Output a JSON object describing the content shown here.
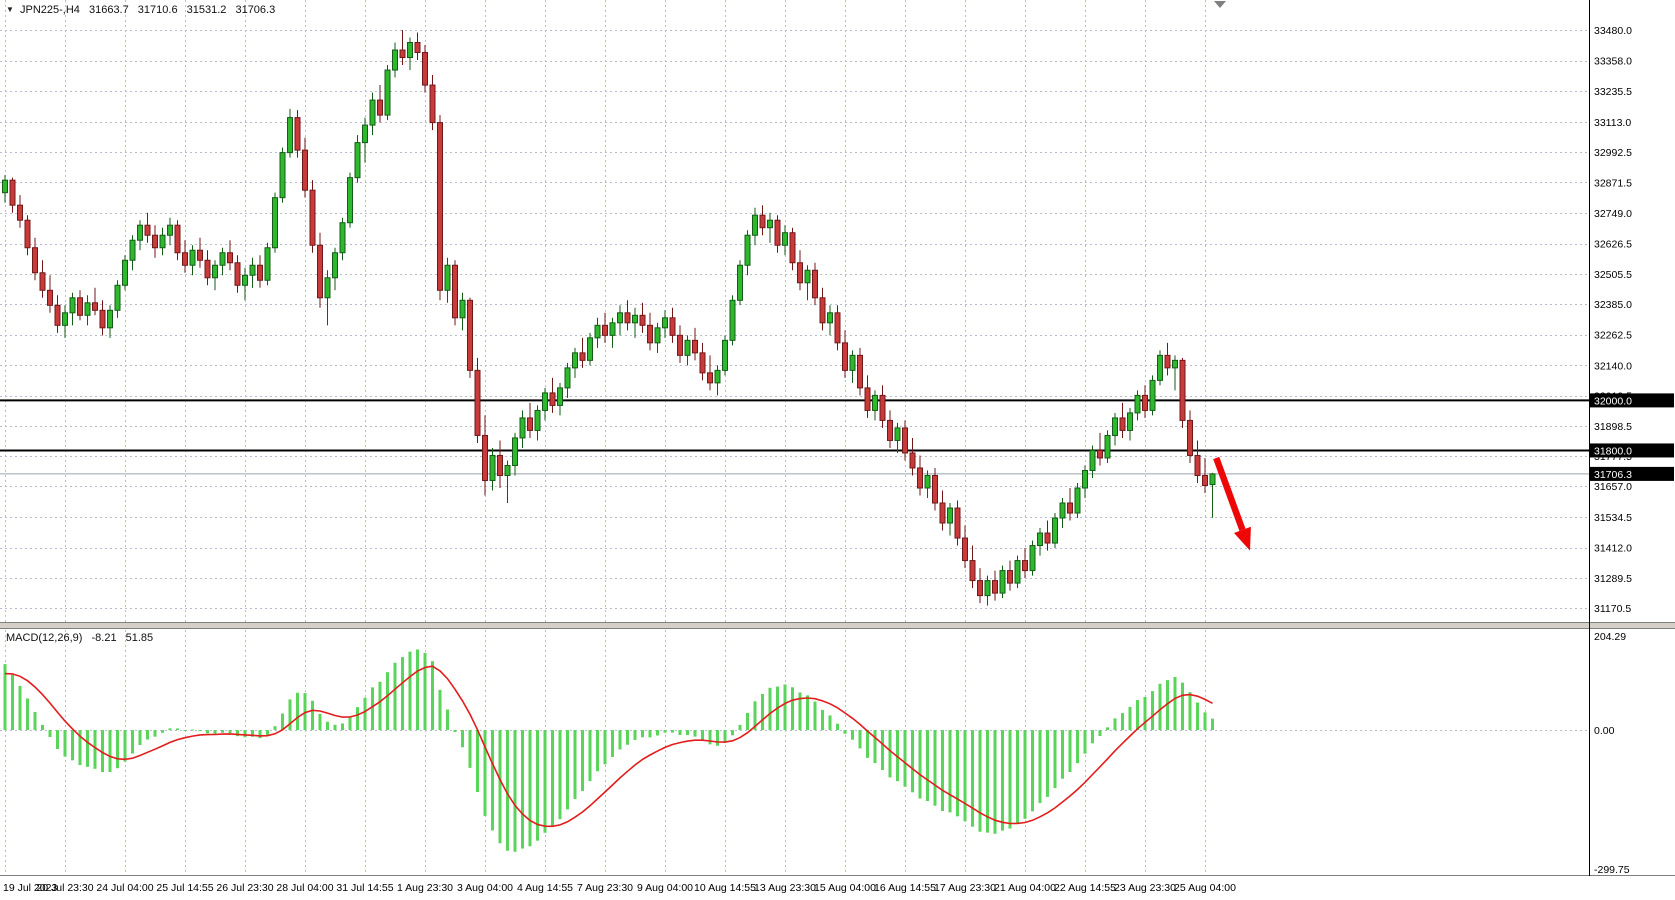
{
  "header": {
    "dropdown_icon": "▼",
    "symbol_period": "JPN225-,H4",
    "open": "31663.7",
    "high": "31710.6",
    "low": "31531.2",
    "close": "31706.3"
  },
  "indicator": {
    "label": "MACD(12,26,9)",
    "main_value": "-8.21",
    "signal_value": "51.85"
  },
  "colors": {
    "background": "#ffffff",
    "grid": "#b8bcd2",
    "bull_fill": "#2eb82e",
    "bull_stroke": "#145c17",
    "bear_fill": "#c93b3b",
    "bear_stroke": "#701818",
    "macd_hist": "#5ad45a",
    "macd_signal": "#e31c1c",
    "level_line": "#000000",
    "badge_bg": "#000000",
    "badge_text": "#ffffff",
    "axis_text": "#000000",
    "current_price_line": "#9aa2ae",
    "panel_splitter": "#d4d0c8",
    "splitter_border": "#808080"
  },
  "annotations": {
    "arrow": {
      "color": "#ee0707",
      "from_bar": 161.5,
      "from_price": 31770,
      "to_bar": 166,
      "to_price": 31400
    }
  },
  "chart_data": {
    "type": "candlestick",
    "symbol_period": "JPN225-,H4",
    "label_every_n_bars": 8,
    "time_labels": [
      "19 Jul 2023",
      "20 Jul 23:30",
      "24 Jul 04:00",
      "25 Jul 14:55",
      "26 Jul 23:30",
      "28 Jul 04:00",
      "31 Jul 14:55",
      "1 Aug 23:30",
      "3 Aug 04:00",
      "4 Aug 14:55",
      "7 Aug 23:30",
      "9 Aug 04:00",
      "10 Aug 14:55",
      "13 Aug 23:30",
      "15 Aug 04:00",
      "16 Aug 14:55",
      "17 Aug 23:30",
      "21 Aug 04:00",
      "22 Aug 14:55",
      "23 Aug 23:30",
      "25 Aug 04:00"
    ],
    "y_ticks": [
      33480.0,
      33358.0,
      33235.5,
      33113.0,
      32992.5,
      32871.5,
      32749.0,
      32626.5,
      32505.5,
      32385.0,
      32262.5,
      32140.0,
      32019.5,
      31898.5,
      31777.5,
      31657.0,
      31534.5,
      31412.0,
      31289.5,
      31170.5
    ],
    "levels": [
      32000.0,
      31800.0
    ],
    "current_price": 31706.3,
    "macd": {
      "params": "12,26,9",
      "range": [
        204.29,
        -299.75
      ],
      "ticks": [
        "204.29",
        "0.00",
        "-299.75"
      ]
    },
    "candles": [
      [
        32830,
        32900,
        32790,
        32880
      ],
      [
        32880,
        32890,
        32750,
        32780
      ],
      [
        32780,
        32820,
        32690,
        32720
      ],
      [
        32720,
        32740,
        32580,
        32610
      ],
      [
        32610,
        32650,
        32480,
        32510
      ],
      [
        32510,
        32560,
        32410,
        32440
      ],
      [
        32440,
        32500,
        32350,
        32380
      ],
      [
        32380,
        32420,
        32270,
        32300
      ],
      [
        32300,
        32380,
        32250,
        32350
      ],
      [
        32350,
        32430,
        32300,
        32410
      ],
      [
        32410,
        32440,
        32320,
        32340
      ],
      [
        32340,
        32420,
        32300,
        32390
      ],
      [
        32390,
        32450,
        32340,
        32360
      ],
      [
        32360,
        32400,
        32260,
        32290
      ],
      [
        32290,
        32380,
        32250,
        32360
      ],
      [
        32360,
        32480,
        32330,
        32460
      ],
      [
        32460,
        32580,
        32440,
        32560
      ],
      [
        32560,
        32660,
        32520,
        32640
      ],
      [
        32640,
        32720,
        32600,
        32700
      ],
      [
        32700,
        32750,
        32630,
        32660
      ],
      [
        32660,
        32700,
        32570,
        32610
      ],
      [
        32610,
        32690,
        32580,
        32660
      ],
      [
        32660,
        32730,
        32620,
        32700
      ],
      [
        32700,
        32720,
        32560,
        32590
      ],
      [
        32590,
        32640,
        32510,
        32540
      ],
      [
        32540,
        32620,
        32500,
        32600
      ],
      [
        32600,
        32650,
        32530,
        32560
      ],
      [
        32560,
        32600,
        32460,
        32490
      ],
      [
        32490,
        32560,
        32440,
        32540
      ],
      [
        32540,
        32610,
        32500,
        32590
      ],
      [
        32590,
        32640,
        32520,
        32550
      ],
      [
        32550,
        32580,
        32430,
        32460
      ],
      [
        32460,
        32530,
        32400,
        32500
      ],
      [
        32500,
        32570,
        32450,
        32540
      ],
      [
        32540,
        32580,
        32450,
        32480
      ],
      [
        32480,
        32630,
        32460,
        32610
      ],
      [
        32610,
        32830,
        32590,
        32810
      ],
      [
        32810,
        33010,
        32790,
        32990
      ],
      [
        32990,
        33165,
        32970,
        33130
      ],
      [
        33130,
        33160,
        32970,
        33000
      ],
      [
        33000,
        33050,
        32810,
        32840
      ],
      [
        32840,
        32880,
        32590,
        32620
      ],
      [
        32620,
        32670,
        32370,
        32410
      ],
      [
        32410,
        32520,
        32300,
        32490
      ],
      [
        32490,
        32610,
        32440,
        32590
      ],
      [
        32590,
        32730,
        32560,
        32710
      ],
      [
        32710,
        32910,
        32690,
        32890
      ],
      [
        32890,
        33060,
        32870,
        33030
      ],
      [
        33030,
        33130,
        32950,
        33100
      ],
      [
        33100,
        33230,
        33060,
        33200
      ],
      [
        33200,
        33260,
        33110,
        33140
      ],
      [
        33140,
        33340,
        33120,
        33320
      ],
      [
        33320,
        33430,
        33290,
        33400
      ],
      [
        33400,
        33480,
        33340,
        33370
      ],
      [
        33370,
        33450,
        33320,
        33430
      ],
      [
        33430,
        33470,
        33360,
        33390
      ],
      [
        33390,
        33420,
        33230,
        33260
      ],
      [
        33260,
        33300,
        33080,
        33110
      ],
      [
        33110,
        33140,
        32400,
        32440
      ],
      [
        32440,
        32570,
        32390,
        32540
      ],
      [
        32540,
        32560,
        32300,
        32330
      ],
      [
        32330,
        32430,
        32280,
        32400
      ],
      [
        32400,
        32410,
        32090,
        32120
      ],
      [
        32120,
        32170,
        31830,
        31860
      ],
      [
        31860,
        31940,
        31620,
        31680
      ],
      [
        31680,
        31810,
        31640,
        31780
      ],
      [
        31780,
        31840,
        31650,
        31700
      ],
      [
        31700,
        31760,
        31590,
        31740
      ],
      [
        31740,
        31870,
        31700,
        31850
      ],
      [
        31850,
        31960,
        31810,
        31930
      ],
      [
        31930,
        31990,
        31850,
        31880
      ],
      [
        31880,
        31980,
        31840,
        31960
      ],
      [
        31960,
        32050,
        31920,
        32030
      ],
      [
        32030,
        32090,
        31950,
        31980
      ],
      [
        31980,
        32070,
        31940,
        32050
      ],
      [
        32050,
        32150,
        32010,
        32130
      ],
      [
        32130,
        32210,
        32090,
        32190
      ],
      [
        32190,
        32250,
        32130,
        32160
      ],
      [
        32160,
        32270,
        32140,
        32250
      ],
      [
        32250,
        32330,
        32210,
        32300
      ],
      [
        32300,
        32350,
        32230,
        32260
      ],
      [
        32260,
        32330,
        32210,
        32310
      ],
      [
        32310,
        32380,
        32260,
        32350
      ],
      [
        32350,
        32400,
        32280,
        32310
      ],
      [
        32310,
        32370,
        32250,
        32340
      ],
      [
        32340,
        32390,
        32270,
        32300
      ],
      [
        32300,
        32350,
        32200,
        32230
      ],
      [
        32230,
        32310,
        32190,
        32290
      ],
      [
        32290,
        32360,
        32250,
        32330
      ],
      [
        32330,
        32370,
        32230,
        32260
      ],
      [
        32260,
        32300,
        32150,
        32180
      ],
      [
        32180,
        32260,
        32140,
        32240
      ],
      [
        32240,
        32290,
        32160,
        32190
      ],
      [
        32190,
        32230,
        32080,
        32110
      ],
      [
        32110,
        32180,
        32040,
        32070
      ],
      [
        32070,
        32140,
        32020,
        32120
      ],
      [
        32120,
        32260,
        32100,
        32240
      ],
      [
        32240,
        32420,
        32220,
        32400
      ],
      [
        32400,
        32560,
        32380,
        32540
      ],
      [
        32540,
        32680,
        32500,
        32660
      ],
      [
        32660,
        32770,
        32620,
        32740
      ],
      [
        32740,
        32780,
        32660,
        32690
      ],
      [
        32690,
        32750,
        32630,
        32720
      ],
      [
        32720,
        32740,
        32590,
        32620
      ],
      [
        32620,
        32700,
        32580,
        32670
      ],
      [
        32670,
        32690,
        32520,
        32550
      ],
      [
        32550,
        32600,
        32440,
        32470
      ],
      [
        32470,
        32540,
        32400,
        32520
      ],
      [
        32520,
        32550,
        32380,
        32410
      ],
      [
        32410,
        32450,
        32280,
        32310
      ],
      [
        32310,
        32380,
        32260,
        32350
      ],
      [
        32350,
        32380,
        32200,
        32230
      ],
      [
        32230,
        32280,
        32090,
        32120
      ],
      [
        32120,
        32200,
        32070,
        32180
      ],
      [
        32180,
        32210,
        32020,
        32050
      ],
      [
        32050,
        32100,
        31930,
        31960
      ],
      [
        31960,
        32040,
        31920,
        32020
      ],
      [
        32020,
        32060,
        31890,
        31920
      ],
      [
        31920,
        31960,
        31810,
        31840
      ],
      [
        31840,
        31910,
        31790,
        31890
      ],
      [
        31890,
        31920,
        31760,
        31790
      ],
      [
        31790,
        31850,
        31700,
        31730
      ],
      [
        31730,
        31780,
        31620,
        31650
      ],
      [
        31650,
        31720,
        31610,
        31700
      ],
      [
        31700,
        31730,
        31560,
        31590
      ],
      [
        31590,
        31640,
        31480,
        31510
      ],
      [
        31510,
        31590,
        31460,
        31570
      ],
      [
        31570,
        31600,
        31420,
        31450
      ],
      [
        31450,
        31500,
        31330,
        31360
      ],
      [
        31360,
        31420,
        31250,
        31280
      ],
      [
        31280,
        31330,
        31190,
        31220
      ],
      [
        31220,
        31300,
        31180,
        31280
      ],
      [
        31280,
        31320,
        31200,
        31230
      ],
      [
        31230,
        31340,
        31210,
        31320
      ],
      [
        31320,
        31360,
        31240,
        31270
      ],
      [
        31270,
        31380,
        31250,
        31360
      ],
      [
        31360,
        31410,
        31290,
        31320
      ],
      [
        31320,
        31440,
        31300,
        31420
      ],
      [
        31420,
        31490,
        31380,
        31470
      ],
      [
        31470,
        31520,
        31400,
        31430
      ],
      [
        31430,
        31550,
        31410,
        31530
      ],
      [
        31530,
        31610,
        31490,
        31590
      ],
      [
        31590,
        31650,
        31520,
        31550
      ],
      [
        31550,
        31670,
        31530,
        31650
      ],
      [
        31650,
        31740,
        31610,
        31720
      ],
      [
        31720,
        31820,
        31690,
        31800
      ],
      [
        31800,
        31870,
        31740,
        31770
      ],
      [
        31770,
        31880,
        31750,
        31860
      ],
      [
        31860,
        31950,
        31820,
        31930
      ],
      [
        31930,
        31990,
        31850,
        31880
      ],
      [
        31880,
        31970,
        31840,
        31950
      ],
      [
        31950,
        32040,
        31920,
        32020
      ],
      [
        32020,
        32060,
        31930,
        31960
      ],
      [
        31960,
        32100,
        31940,
        32080
      ],
      [
        32080,
        32200,
        32060,
        32180
      ],
      [
        32180,
        32230,
        32100,
        32130
      ],
      [
        32130,
        32180,
        32040,
        32160
      ],
      [
        32160,
        32170,
        31890,
        31920
      ],
      [
        31920,
        31960,
        31750,
        31780
      ],
      [
        31780,
        31840,
        31670,
        31700
      ],
      [
        31700,
        31770,
        31630,
        31660
      ],
      [
        31663.7,
        31710.6,
        31531.2,
        31706.3
      ]
    ]
  }
}
